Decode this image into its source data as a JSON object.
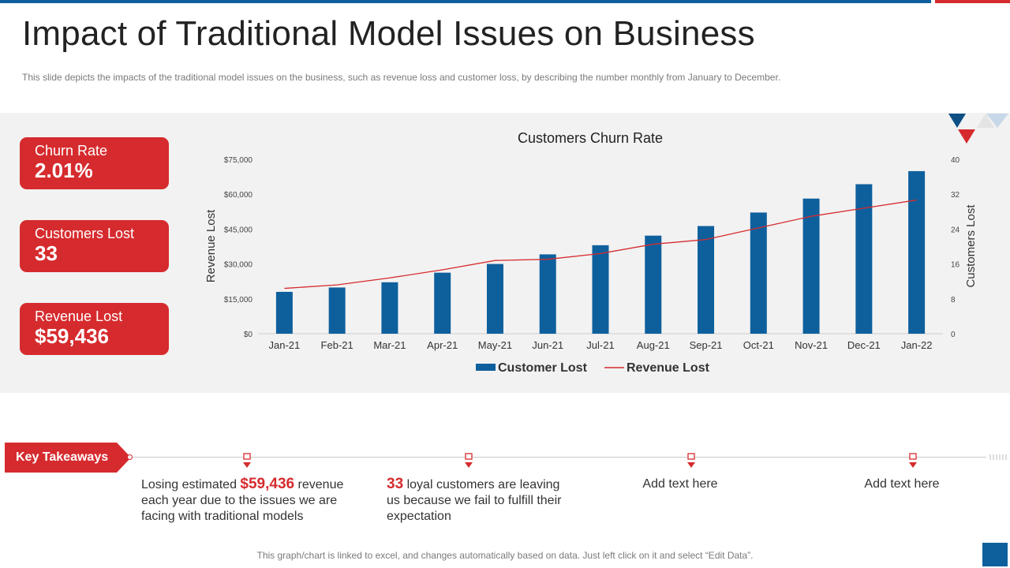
{
  "page": {
    "title": "Impact of Traditional Model Issues on Business",
    "subtitle": "This slide depicts the impacts of the traditional model issues on the business, such as revenue  loss and customer loss, by describing the number  monthly from January  to December.",
    "footer": "This graph/chart is linked to excel, and changes automatically based on data. Just left click on it and select “Edit Data”."
  },
  "colors": {
    "brand_blue": "#0e609d",
    "brand_red": "#d62b2e",
    "panel_bg": "#f2f2f2"
  },
  "kpis": [
    {
      "label": "Churn Rate",
      "value": "2.01%"
    },
    {
      "label": "Customers Lost",
      "value": "33"
    },
    {
      "label": "Revenue Lost",
      "value": "$59,436"
    }
  ],
  "takeaways": {
    "tag": "Key Takeaways",
    "items": [
      {
        "highlight": "$59,436",
        "pre": "Losing estimated ",
        "post": " revenue each year due to the issues we are facing with traditional models"
      },
      {
        "highlight": "33",
        "pre": "",
        "post": " loyal customers are leaving us because we fail to fulfill their expectation"
      },
      {
        "text": "Add text here"
      },
      {
        "text": "Add text here"
      }
    ]
  },
  "chart_data": {
    "type": "bar",
    "title": "Customers Churn Rate",
    "categories": [
      "Jan-21",
      "Feb-21",
      "Mar-21",
      "Apr-21",
      "May-21",
      "Jun-21",
      "Jul-21",
      "Aug-21",
      "Sep-21",
      "Oct-21",
      "Nov-21",
      "Dec-21",
      "Jan-22"
    ],
    "series": [
      {
        "name": "Customer Lost",
        "type": "bar",
        "axis": "right",
        "color": "#0e609d",
        "values": [
          9.6,
          10.6,
          11.8,
          14,
          16,
          18.2,
          20.3,
          22.5,
          24.7,
          27.8,
          31,
          34.3,
          37.3
        ]
      },
      {
        "name": "Revenue Lost",
        "type": "line",
        "axis": "left",
        "color": "#d62b2e",
        "values": [
          19500,
          21000,
          24000,
          27500,
          31500,
          32000,
          34500,
          38500,
          40500,
          45500,
          50500,
          54000,
          57500
        ]
      }
    ],
    "ylabel": "Revenue Lost",
    "y2label": "Customers Lost",
    "ylim": [
      0,
      75000
    ],
    "y2lim": [
      0,
      40
    ],
    "yticks": [
      "$0",
      "$15,000",
      "$30,000",
      "$45,000",
      "$60,000",
      "$75,000"
    ],
    "y2ticks": [
      "0",
      "8",
      "16",
      "24",
      "32",
      "40"
    ],
    "legend_position": "bottom"
  }
}
